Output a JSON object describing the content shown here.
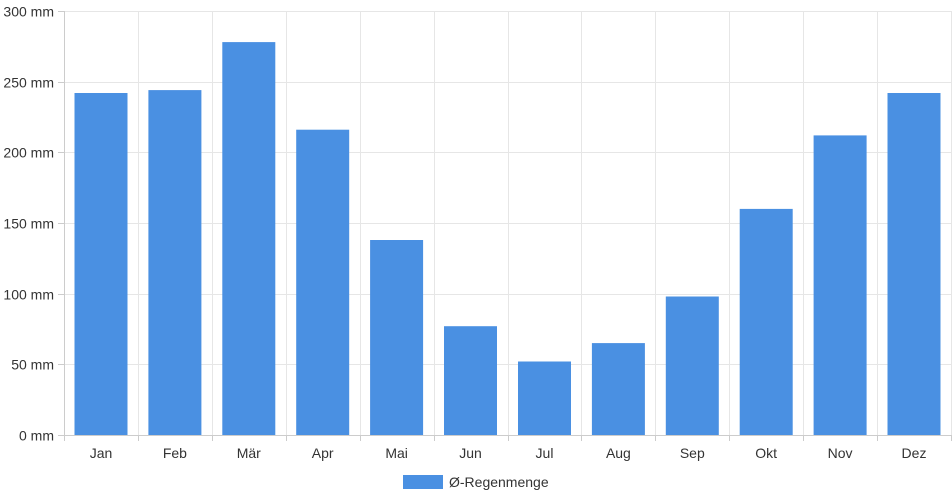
{
  "chart_data": {
    "type": "bar",
    "categories": [
      "Jan",
      "Feb",
      "Mär",
      "Apr",
      "Mai",
      "Jun",
      "Jul",
      "Aug",
      "Sep",
      "Okt",
      "Nov",
      "Dez"
    ],
    "series": [
      {
        "name": "Ø-Regenmenge",
        "values": [
          242,
          244,
          278,
          216,
          138,
          77,
          52,
          65,
          98,
          160,
          212,
          242
        ],
        "color": "#4a90e2"
      }
    ],
    "y_ticks": [
      "0 mm",
      "50 mm",
      "100 mm",
      "150 mm",
      "200 mm",
      "250 mm",
      "300 mm"
    ],
    "ylim": [
      0,
      300
    ],
    "grid": true,
    "legend_position": "bottom-center"
  }
}
